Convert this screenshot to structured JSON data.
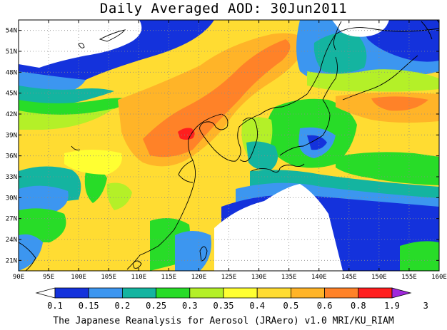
{
  "title": "Daily Averaged AOD: 30Jun2011",
  "credit": "The Japanese Reanalysis for Aerosol (JRAero) v1.0 MRI/KU_RIAM",
  "map": {
    "lon_range": [
      90,
      160
    ],
    "lat_range": [
      19.5,
      55.5
    ],
    "lon_ticks": [
      "90E",
      "95E",
      "100E",
      "105E",
      "110E",
      "115E",
      "120E",
      "125E",
      "130E",
      "135E",
      "140E",
      "145E",
      "150E",
      "155E",
      "160E"
    ],
    "lat_ticks": [
      "54N",
      "51N",
      "48N",
      "45N",
      "42N",
      "39N",
      "36N",
      "33N",
      "30N",
      "27N",
      "24N",
      "21N"
    ],
    "lat_tick_values": [
      54,
      51,
      48,
      45,
      42,
      39,
      36,
      33,
      30,
      27,
      24,
      21
    ],
    "lon_tick_values": [
      90,
      95,
      100,
      105,
      110,
      115,
      120,
      125,
      130,
      135,
      140,
      145,
      150,
      155,
      160
    ],
    "gridlines": true,
    "field": "AOD"
  },
  "colorbar": {
    "levels": [
      "0.1",
      "0.15",
      "0.2",
      "0.25",
      "0.3",
      "0.35",
      "0.4",
      "0.5",
      "0.6",
      "0.8",
      "1.9",
      "3"
    ],
    "colors": [
      "#ffffff",
      "#1432dc",
      "#3c96f0",
      "#14b4a0",
      "#28dc28",
      "#b4f028",
      "#ffff32",
      "#ffdc32",
      "#ffb428",
      "#ff8228",
      "#ff1e1e",
      "#a028dc"
    ]
  }
}
